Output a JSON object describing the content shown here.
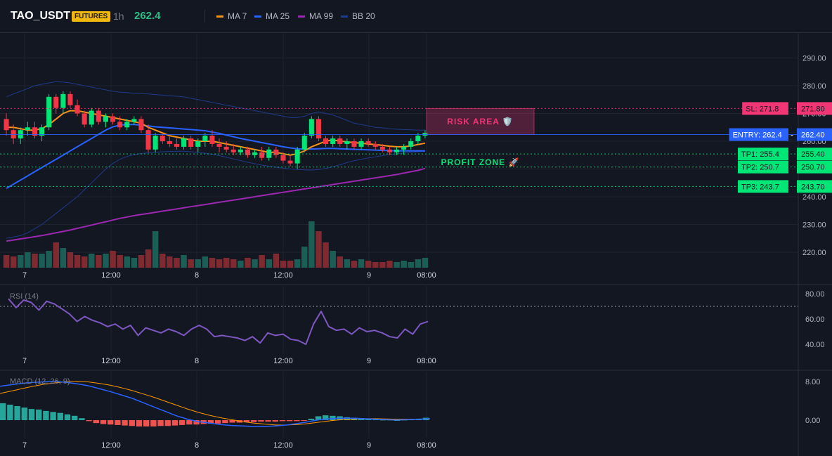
{
  "header": {
    "symbol": "TAO_USDT",
    "badge": "FUTURES",
    "timeframe": "1h",
    "last_price": "262.4",
    "legend": [
      {
        "label": "MA 7",
        "color": "#f7931a"
      },
      {
        "label": "MA 25",
        "color": "#2962ff"
      },
      {
        "label": "MA 99",
        "color": "#9c27b0"
      },
      {
        "label": "BB 20",
        "color": "#1e3a8a"
      }
    ]
  },
  "colors": {
    "background": "#131722",
    "grid": "#1f2330",
    "up": "#00e676",
    "down": "#f23645",
    "vol_up": "#1b5e56",
    "vol_down": "#7f2a30",
    "rsi": "#7e57c2",
    "macd": "#2962ff",
    "signal": "#ff9800",
    "hist_up": "#26a69a",
    "hist_down": "#ef5350"
  },
  "chart_data": [
    {
      "type": "candlestick",
      "title": "",
      "x_tick_labels": [
        "7",
        "12:00",
        "8",
        "12:00",
        "9",
        "08:00"
      ],
      "y_tick_labels": [
        "290.00",
        "280.00",
        "270.00",
        "260.00",
        "250.00",
        "240.00",
        "230.00",
        "220.00"
      ],
      "ylim": [
        215,
        296
      ],
      "candles": [
        [
          268,
          270,
          262,
          264
        ],
        [
          264,
          266,
          259,
          261
        ],
        [
          261,
          265,
          259,
          264
        ],
        [
          264,
          267,
          262,
          265
        ],
        [
          265,
          267,
          261,
          262
        ],
        [
          262,
          266,
          260,
          265
        ],
        [
          265,
          277,
          264,
          276
        ],
        [
          276,
          277,
          270,
          272
        ],
        [
          272,
          278,
          270,
          277
        ],
        [
          277,
          278,
          272,
          273
        ],
        [
          273,
          275,
          269,
          270
        ],
        [
          270,
          271,
          265,
          266
        ],
        [
          266,
          272,
          265,
          271
        ],
        [
          271,
          272,
          266,
          267
        ],
        [
          267,
          270,
          265,
          269
        ],
        [
          269,
          270,
          266,
          267
        ],
        [
          267,
          269,
          264,
          265
        ],
        [
          265,
          268,
          264,
          267
        ],
        [
          267,
          269,
          266,
          268
        ],
        [
          268,
          269,
          263,
          264
        ],
        [
          264,
          266,
          256,
          257
        ],
        [
          257,
          263,
          256,
          262
        ],
        [
          262,
          263,
          259,
          260
        ],
        [
          260,
          262,
          258,
          259
        ],
        [
          259,
          261,
          257,
          258
        ],
        [
          258,
          262,
          257,
          261
        ],
        [
          261,
          262,
          257,
          258
        ],
        [
          258,
          261,
          256,
          260
        ],
        [
          260,
          263,
          258,
          262
        ],
        [
          262,
          264,
          258,
          259
        ],
        [
          259,
          261,
          256,
          258
        ],
        [
          258,
          260,
          256,
          257
        ],
        [
          257,
          259,
          255,
          256
        ],
        [
          256,
          258,
          255,
          257
        ],
        [
          257,
          258,
          254,
          255
        ],
        [
          255,
          257,
          254,
          256
        ],
        [
          256,
          258,
          253,
          254
        ],
        [
          254,
          258,
          253,
          257
        ],
        [
          257,
          258,
          254,
          255
        ],
        [
          255,
          256,
          252,
          253
        ],
        [
          253,
          255,
          251,
          252
        ],
        [
          252,
          258,
          250,
          257
        ],
        [
          257,
          263,
          256,
          262
        ],
        [
          262,
          269,
          261,
          268
        ],
        [
          268,
          269,
          260,
          261
        ],
        [
          261,
          262,
          258,
          259
        ],
        [
          259,
          262,
          258,
          261
        ],
        [
          261,
          262,
          258,
          259
        ],
        [
          259,
          261,
          257,
          260
        ],
        [
          260,
          261,
          257,
          258
        ],
        [
          258,
          261,
          257,
          260
        ],
        [
          260,
          261,
          258,
          259
        ],
        [
          259,
          260,
          257,
          258
        ],
        [
          258,
          259,
          256,
          257
        ],
        [
          257,
          258,
          255,
          256
        ],
        [
          256,
          258,
          255,
          257
        ],
        [
          257,
          259,
          255,
          258
        ],
        [
          258,
          261,
          257,
          260
        ],
        [
          260,
          263,
          259,
          262
        ],
        [
          262,
          264,
          261,
          263
        ]
      ],
      "volume": [
        9,
        8,
        9,
        11,
        10,
        10,
        12,
        18,
        14,
        11,
        9,
        8,
        10,
        9,
        10,
        12,
        9,
        8,
        7,
        9,
        13,
        26,
        10,
        8,
        7,
        9,
        6,
        6,
        8,
        7,
        6,
        7,
        6,
        5,
        7,
        6,
        9,
        6,
        10,
        5,
        5,
        6,
        15,
        33,
        26,
        18,
        12,
        8,
        6,
        5,
        6,
        5,
        4,
        4,
        5,
        4,
        5,
        4,
        6,
        7
      ],
      "ma7": [
        265,
        265,
        264.5,
        264,
        264,
        264.5,
        266,
        268,
        270,
        271,
        271,
        270.5,
        270,
        269.5,
        269,
        268.5,
        268,
        267.5,
        267,
        266.5,
        265,
        264,
        263,
        262,
        261.5,
        261,
        260.5,
        260,
        260,
        260,
        259.5,
        259,
        258.5,
        258,
        257.5,
        257,
        256.5,
        256,
        256,
        255.5,
        255,
        255.5,
        256.5,
        258,
        259,
        260,
        260.5,
        260,
        259.8,
        259.5,
        259.3,
        259,
        258.8,
        258.5,
        258.2,
        258,
        258,
        258.3,
        258.8,
        259.3
      ],
      "ma25": [
        243,
        244.5,
        246,
        247.5,
        249,
        250.5,
        252,
        253.5,
        255,
        256.5,
        258,
        259.5,
        261,
        262.5,
        264,
        265.2,
        265.8,
        266,
        266,
        265.8,
        265.5,
        265.2,
        265,
        264.8,
        264.6,
        264.4,
        264.2,
        264,
        263.8,
        263.3,
        262.8,
        262.2,
        261.6,
        261,
        260.5,
        260,
        259.5,
        259,
        258.5,
        258,
        257.6,
        257.3,
        257.2,
        257.2,
        257.3,
        257.4,
        257.4,
        257.3,
        257.2,
        257.1,
        257,
        256.9,
        256.8,
        256.7,
        256.6,
        256.5,
        256.5,
        256.5,
        256.5,
        256.5
      ],
      "ma99": [
        224,
        224.4,
        224.8,
        225.2,
        225.6,
        226,
        226.5,
        227,
        227.5,
        228,
        228.6,
        229.2,
        229.8,
        230.4,
        231,
        231.6,
        232.2,
        232.7,
        233.2,
        233.6,
        234,
        234.4,
        234.8,
        235.2,
        235.6,
        236,
        236.4,
        236.8,
        237.2,
        237.6,
        238,
        238.4,
        238.8,
        239.2,
        239.6,
        240,
        240.4,
        240.8,
        241.2,
        241.6,
        242,
        242.4,
        242.8,
        243.2,
        243.6,
        244,
        244.4,
        244.8,
        245.2,
        245.6,
        246,
        246.4,
        246.8,
        247.2,
        247.6,
        248,
        248.5,
        249,
        249.5,
        250.2
      ],
      "bb_upper": [
        276,
        277,
        278,
        279,
        280,
        280.5,
        281,
        281.5,
        281.3,
        281,
        280.5,
        280,
        279.5,
        279,
        278.5,
        278,
        277.7,
        277.5,
        277.3,
        277.2,
        277,
        276.8,
        276.6,
        276.4,
        276.2,
        276,
        275.5,
        275,
        274.5,
        274,
        273.5,
        273,
        272.5,
        272,
        271.5,
        271,
        270.5,
        270,
        269.5,
        269,
        268.5,
        268.5,
        269,
        270,
        270.5,
        270,
        269.5,
        268.5,
        267.5,
        266.5,
        266,
        265.5,
        265,
        264.8,
        264.5,
        264.3,
        264.2,
        264.1,
        264,
        264
      ],
      "bb_lower": [
        225,
        225.5,
        226,
        227,
        228.5,
        230,
        232,
        234,
        236,
        238,
        240,
        242.5,
        245,
        247.5,
        250,
        252,
        253.5,
        254.5,
        255.2,
        255.6,
        255.8,
        256,
        256.2,
        256.3,
        256.4,
        256.4,
        256.2,
        256,
        255.7,
        255.3,
        254.8,
        254.2,
        253.6,
        253,
        252.4,
        251.9,
        251.4,
        251,
        250.6,
        250.3,
        250,
        249.8,
        249.7,
        249.6,
        249.8,
        250.2,
        250.8,
        251.5,
        252.3,
        253,
        253.5,
        254,
        254.4,
        254.8,
        255.2,
        255.5,
        255.8,
        256,
        256.2,
        256.4
      ],
      "levels": [
        {
          "label": "SL: 271.8",
          "value": 271.8,
          "price_label": "271.80",
          "color": "#f23675"
        },
        {
          "label": "ENTRY: 262.4",
          "value": 262.4,
          "price_label": "262.40",
          "color": "#2962ff"
        },
        {
          "label": "TP1: 255.4",
          "value": 255.4,
          "price_label": "255.40",
          "color": "#00e676"
        },
        {
          "label": "TP2: 250.7",
          "value": 250.7,
          "price_label": "250.70",
          "color": "#00e676"
        },
        {
          "label": "TP3: 243.7",
          "value": 243.7,
          "price_label": "243.70",
          "color": "#00e676"
        }
      ],
      "zones": [
        {
          "label": "RISK AREA 🛡️",
          "from": 262.4,
          "to": 271.8,
          "color": "#f23675"
        },
        {
          "label": "PROFIT ZONE 🚀",
          "from": 243.7,
          "to": 262.4,
          "color": "#00e676"
        }
      ]
    },
    {
      "type": "line",
      "title": "RSI (14)",
      "y_tick_labels": [
        "80.00",
        "60.00",
        "40.00"
      ],
      "ylim": [
        33,
        86
      ],
      "overbought": 70,
      "values": [
        76,
        69,
        75,
        73,
        67,
        74,
        72,
        68,
        64,
        58,
        62,
        59,
        57,
        54,
        56,
        52,
        55,
        47,
        53,
        51,
        49,
        52,
        50,
        47,
        52,
        55,
        52,
        46,
        47,
        46,
        45,
        43,
        46,
        41,
        49,
        47,
        48,
        44,
        43,
        40,
        56,
        66,
        54,
        51,
        52,
        48,
        53,
        50,
        51,
        49,
        46,
        45,
        52,
        48,
        56,
        58
      ]
    },
    {
      "type": "line",
      "title": "MACD (12, 26, 9)",
      "y_tick_labels": [
        "8.00",
        "0.00"
      ],
      "ylim": [
        -5,
        10.5
      ],
      "macd": [
        7,
        7.3,
        7.6,
        7.8,
        7.9,
        8,
        7.8,
        7.5,
        7.1,
        6.5,
        5.9,
        5.2,
        4.5,
        3.6,
        2.7,
        1.8,
        0.9,
        0.2,
        -0.3,
        -0.6,
        -0.9,
        -1.1,
        -1.2,
        -1.3,
        -1.3,
        -1.2,
        -1,
        -0.7,
        -0.3,
        0.1,
        0.3,
        0.4,
        0.4,
        0.3,
        0.2,
        0.1,
        0.05,
        0.1,
        0.2,
        0.3
      ],
      "signal": [
        5.5,
        6,
        6.5,
        7,
        7.4,
        7.7,
        7.9,
        8,
        7.9,
        7.6,
        7.2,
        6.7,
        6.1,
        5.4,
        4.7,
        3.9,
        3.1,
        2.3,
        1.6,
        1,
        0.5,
        0.1,
        -0.3,
        -0.6,
        -0.8,
        -1,
        -1,
        -0.9,
        -0.7,
        -0.4,
        -0.1,
        0.1,
        0.2,
        0.3,
        0.3,
        0.25,
        0.2,
        0.2,
        0.2,
        0.25
      ],
      "histogram": [
        3.5,
        3.2,
        2.9,
        2.6,
        2.3,
        2.2,
        1.9,
        1.7,
        1.5,
        1.2,
        0.9,
        0.4,
        -0.2,
        -0.6,
        -0.8,
        -0.9,
        -1,
        -1.1,
        -1.2,
        -1.3,
        -1.3,
        -1.3,
        -1.2,
        -1.2,
        -1.1,
        -1,
        -0.9,
        -0.9,
        -0.8,
        -0.7,
        -0.7,
        -0.6,
        -0.5,
        -0.5,
        -0.4,
        -0.4,
        -0.3,
        -0.3,
        -0.3,
        -0.2,
        -0.2,
        -0.2,
        -0.1,
        0.3,
        0.8,
        1,
        0.9,
        0.8,
        0.6,
        0.5,
        0.4,
        0.3,
        0.2,
        0.1,
        0.1,
        0,
        0.1,
        0.2,
        0.3,
        0.5
      ]
    }
  ]
}
